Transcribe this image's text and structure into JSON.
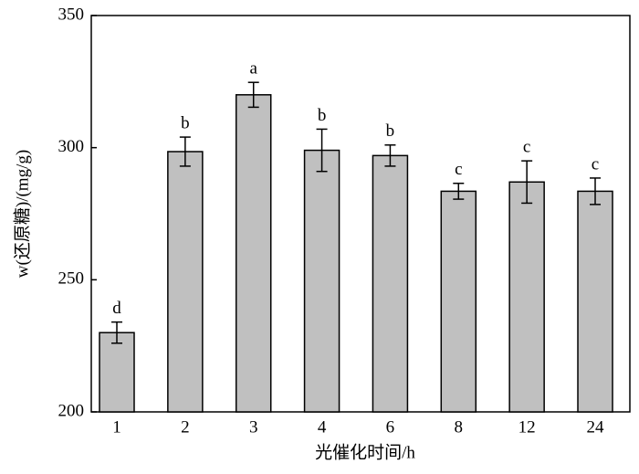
{
  "chart_data": {
    "type": "bar",
    "x_label": "光催化时间/h",
    "y_label": "w(还原糖)/(mg/g)",
    "categories": [
      "1",
      "2",
      "3",
      "4",
      "6",
      "8",
      "12",
      "24"
    ],
    "values": [
      230,
      298.5,
      320,
      299,
      297,
      283.5,
      287,
      283.5
    ],
    "errors": [
      4,
      5.5,
      4.7,
      8,
      4,
      3,
      8,
      5
    ],
    "labels": [
      "d",
      "b",
      "a",
      "b",
      "b",
      "c",
      "c",
      "c"
    ],
    "color": "#c0c0c0",
    "ylim": [
      200,
      350
    ],
    "yticks": [
      200,
      250,
      300,
      350
    ]
  }
}
